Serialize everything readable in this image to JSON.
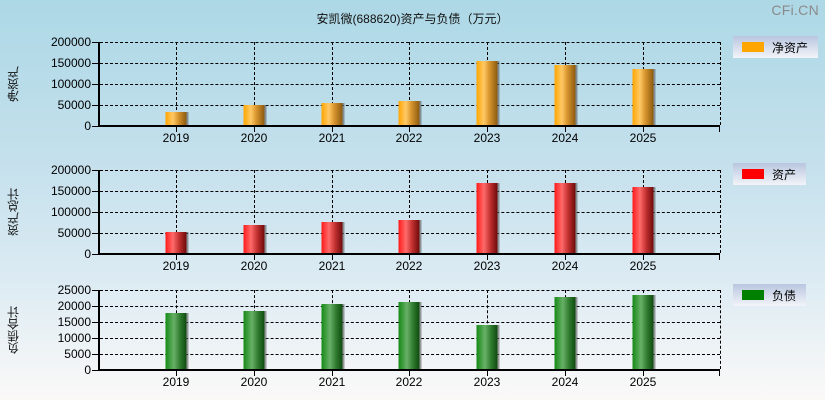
{
  "title": "安凯微(688620)资产与负债（万元）",
  "watermark": "CFi.CN",
  "chart_data": [
    {
      "type": "bar",
      "title": "安凯微(688620)资产与负债（万元）",
      "ylabel": "净资产",
      "xlabel": "",
      "categories": [
        "2019",
        "2020",
        "2021",
        "2022",
        "2023",
        "2024",
        "2025"
      ],
      "series": [
        {
          "name": "净资产",
          "color": "#ffa500",
          "values": [
            31000,
            47600,
            52400,
            57000,
            152000,
            143000,
            133000
          ]
        }
      ],
      "ylim": [
        0,
        200000
      ],
      "yticks": [
        "200000",
        "150000",
        "100000",
        "50000",
        "0"
      ],
      "grid": true,
      "legend_position": "right"
    },
    {
      "type": "bar",
      "ylabel": "资产总计",
      "xlabel": "",
      "categories": [
        "2019",
        "2020",
        "2021",
        "2022",
        "2023",
        "2024",
        "2025"
      ],
      "series": [
        {
          "name": "资产",
          "color": "#ff0000",
          "values": [
            50000,
            66700,
            73800,
            78600,
            166700,
            166700,
            157000
          ]
        }
      ],
      "ylim": [
        0,
        200000
      ],
      "yticks": [
        "200000",
        "150000",
        "100000",
        "50000",
        "0"
      ],
      "grid": true,
      "legend_position": "right"
    },
    {
      "type": "bar",
      "ylabel": "负债合计",
      "xlabel": "",
      "categories": [
        "2019",
        "2020",
        "2021",
        "2022",
        "2023",
        "2024",
        "2025"
      ],
      "series": [
        {
          "name": "负债",
          "color": "#008000",
          "values": [
            17500,
            18200,
            20300,
            21000,
            13700,
            22500,
            23100
          ]
        }
      ],
      "ylim": [
        0,
        25000
      ],
      "yticks": [
        "25000",
        "20000",
        "15000",
        "10000",
        "5000",
        "0"
      ],
      "grid": true,
      "legend_position": "right"
    }
  ],
  "panels": [
    {
      "ylabel": "净资产",
      "legend": "净资产",
      "color_class": "orange",
      "legend_color": "#ffa500"
    },
    {
      "ylabel": "资产总计",
      "legend": "资产",
      "color_class": "red",
      "legend_color": "#ff0000"
    },
    {
      "ylabel": "负债合计",
      "legend": "负债",
      "color_class": "green",
      "legend_color": "#008000"
    }
  ]
}
